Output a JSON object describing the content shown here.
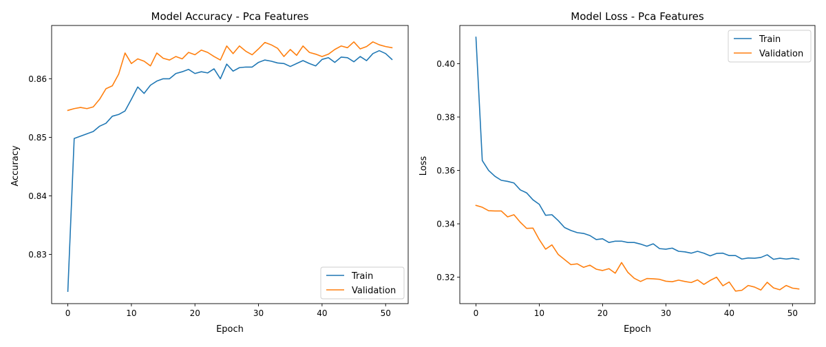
{
  "chart_data": [
    {
      "type": "line",
      "title": "Model Accuracy - Pca Features",
      "xlabel": "Epoch",
      "ylabel": "Accuracy",
      "xlim": [
        -2.55,
        53.55
      ],
      "ylim": [
        0.8216,
        0.8691
      ],
      "xticks": [
        0,
        10,
        20,
        30,
        40,
        50
      ],
      "xtick_labels": [
        "0",
        "10",
        "20",
        "30",
        "40",
        "50"
      ],
      "yticks": [
        0.83,
        0.84,
        0.85,
        0.86
      ],
      "ytick_labels": [
        "0.83",
        "0.84",
        "0.85",
        "0.86"
      ],
      "grid": false,
      "legend": "lower-right",
      "series": [
        {
          "name": "Train",
          "color": "#1f77b4",
          "values": [
            0.8237,
            0.8498,
            0.8502,
            0.8506,
            0.851,
            0.8519,
            0.8524,
            0.8536,
            0.8539,
            0.8545,
            0.8565,
            0.8586,
            0.8575,
            0.8589,
            0.8596,
            0.86,
            0.86,
            0.8609,
            0.8612,
            0.8616,
            0.8609,
            0.8612,
            0.861,
            0.8617,
            0.86,
            0.8625,
            0.8613,
            0.8619,
            0.862,
            0.862,
            0.8628,
            0.8632,
            0.863,
            0.8627,
            0.8626,
            0.8621,
            0.8626,
            0.8631,
            0.8626,
            0.8622,
            0.8633,
            0.8636,
            0.8628,
            0.8637,
            0.8636,
            0.8629,
            0.8638,
            0.8631,
            0.8643,
            0.8648,
            0.8643,
            0.8633
          ]
        },
        {
          "name": "Validation",
          "color": "#ff7f0e",
          "values": [
            0.8546,
            0.8549,
            0.8551,
            0.8549,
            0.8552,
            0.8565,
            0.8583,
            0.8588,
            0.8608,
            0.8644,
            0.8626,
            0.8634,
            0.863,
            0.8622,
            0.8644,
            0.8635,
            0.8632,
            0.8638,
            0.8634,
            0.8645,
            0.8641,
            0.8649,
            0.8645,
            0.8638,
            0.8632,
            0.8656,
            0.8643,
            0.8656,
            0.8647,
            0.8641,
            0.8651,
            0.8662,
            0.8658,
            0.8652,
            0.8638,
            0.865,
            0.864,
            0.8656,
            0.8645,
            0.8642,
            0.8638,
            0.8642,
            0.865,
            0.8656,
            0.8653,
            0.8663,
            0.8651,
            0.8655,
            0.8663,
            0.8658,
            0.8655,
            0.8653
          ]
        }
      ]
    },
    {
      "type": "line",
      "title": "Model Loss - Pca Features",
      "xlabel": "Epoch",
      "ylabel": "Loss",
      "xlim": [
        -2.55,
        53.55
      ],
      "ylim": [
        0.3101,
        0.4143
      ],
      "xticks": [
        0,
        10,
        20,
        30,
        40,
        50
      ],
      "xtick_labels": [
        "0",
        "10",
        "20",
        "30",
        "40",
        "50"
      ],
      "yticks": [
        0.32,
        0.34,
        0.36,
        0.38,
        0.4
      ],
      "ytick_labels": [
        "0.32",
        "0.34",
        "0.36",
        "0.38",
        "0.40"
      ],
      "grid": false,
      "legend": "upper-right",
      "series": [
        {
          "name": "Train",
          "color": "#1f77b4",
          "values": [
            0.4099,
            0.3637,
            0.36,
            0.3578,
            0.3563,
            0.3559,
            0.3553,
            0.3527,
            0.3516,
            0.349,
            0.3473,
            0.3432,
            0.3434,
            0.3412,
            0.3386,
            0.3375,
            0.3367,
            0.3364,
            0.3356,
            0.3341,
            0.3344,
            0.333,
            0.3335,
            0.3335,
            0.333,
            0.333,
            0.3324,
            0.3316,
            0.3325,
            0.3307,
            0.3305,
            0.3309,
            0.3297,
            0.3295,
            0.329,
            0.3297,
            0.329,
            0.328,
            0.3289,
            0.329,
            0.3281,
            0.3281,
            0.3268,
            0.3272,
            0.3271,
            0.3274,
            0.3284,
            0.3267,
            0.3271,
            0.3268,
            0.3271,
            0.3267
          ]
        },
        {
          "name": "Validation",
          "color": "#ff7f0e",
          "values": [
            0.3469,
            0.3462,
            0.3449,
            0.3448,
            0.3448,
            0.3426,
            0.3434,
            0.3406,
            0.3383,
            0.3384,
            0.3341,
            0.3305,
            0.3321,
            0.3285,
            0.3266,
            0.3247,
            0.325,
            0.3237,
            0.3245,
            0.323,
            0.3225,
            0.3232,
            0.3215,
            0.3255,
            0.3218,
            0.3196,
            0.3184,
            0.3195,
            0.3194,
            0.3192,
            0.3185,
            0.3183,
            0.3189,
            0.3184,
            0.318,
            0.319,
            0.3173,
            0.3188,
            0.32,
            0.3168,
            0.3182,
            0.3148,
            0.3151,
            0.3169,
            0.3163,
            0.3152,
            0.3181,
            0.316,
            0.3153,
            0.3169,
            0.3159,
            0.3156
          ]
        }
      ]
    }
  ]
}
